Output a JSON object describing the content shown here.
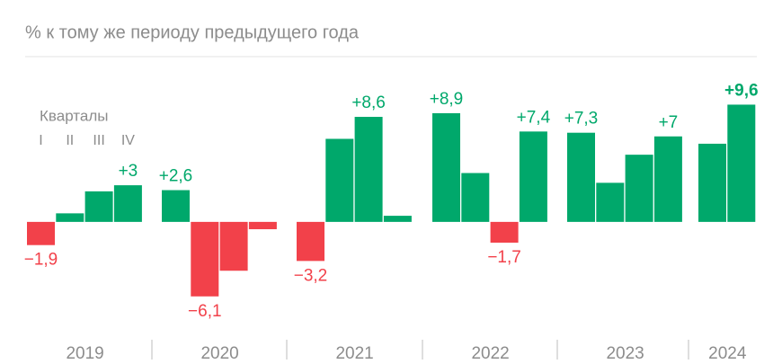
{
  "chart_data": {
    "type": "bar",
    "subtitle": "% к тому же периоду предыдущего года",
    "legend_title": "Кварталы",
    "quarter_labels": [
      "I",
      "II",
      "III",
      "IV"
    ],
    "positive_color": "#00a86b",
    "negative_color": "#f2414a",
    "ylim": [
      -7,
      10
    ],
    "series": [
      {
        "name": "2019",
        "values": [
          -1.9,
          0.7,
          2.5,
          3
        ],
        "value_labels": [
          "−1,9",
          null,
          null,
          "+3"
        ]
      },
      {
        "name": "2020",
        "values": [
          2.6,
          -6.1,
          -4.0,
          -0.6
        ],
        "value_labels": [
          "+2,6",
          "−6,1",
          null,
          null
        ]
      },
      {
        "name": "2021",
        "values": [
          -3.2,
          6.8,
          8.6,
          0.5
        ],
        "value_labels": [
          "−3,2",
          null,
          "+8,6",
          null
        ]
      },
      {
        "name": "2022",
        "values": [
          8.9,
          4.0,
          -1.7,
          7.4
        ],
        "value_labels": [
          "+8,9",
          null,
          "−1,7",
          "+7,4"
        ]
      },
      {
        "name": "2023",
        "values": [
          7.3,
          3.2,
          5.5,
          7
        ],
        "value_labels": [
          "+7,3",
          null,
          null,
          "+7"
        ]
      },
      {
        "name": "2024",
        "values": [
          6.4,
          9.6
        ],
        "value_labels": [
          null,
          "+9,6"
        ]
      }
    ]
  }
}
